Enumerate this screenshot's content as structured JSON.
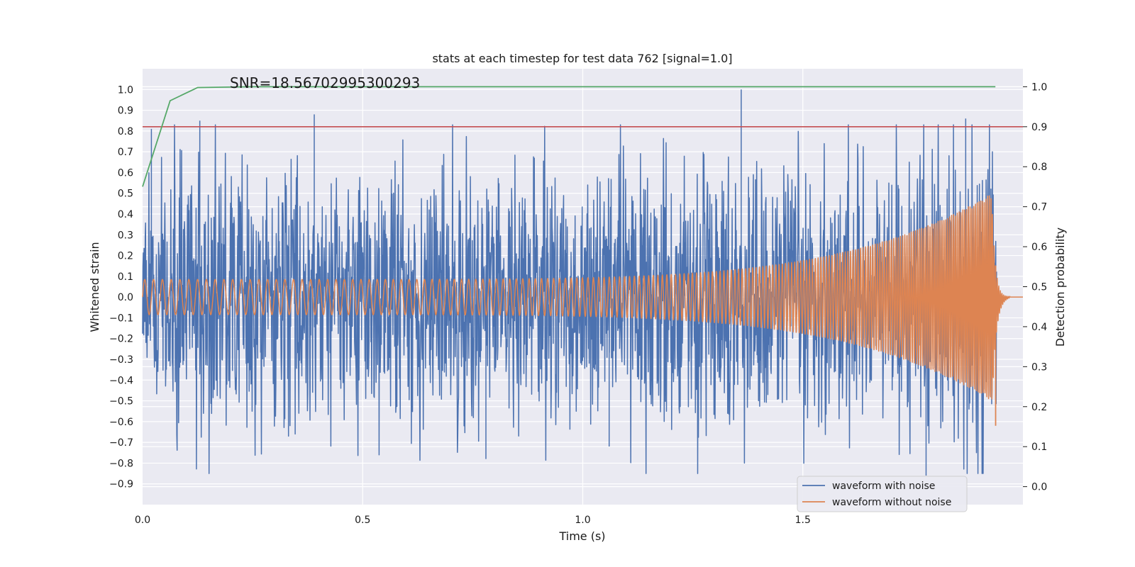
{
  "chart_data": {
    "type": "line",
    "title": "stats at each timestep for test data 762 [signal=1.0]",
    "annotation": "SNR=18.56702995300293",
    "xlabel": "Time (s)",
    "ylabel": "Whitened strain",
    "y2label": "Detection probability",
    "xlim": [
      0.0,
      2.0
    ],
    "ylim": [
      -1.0,
      1.1
    ],
    "y2lim": [
      -0.045,
      1.045
    ],
    "xticks": [
      "0.0",
      "0.5",
      "1.0",
      "1.5"
    ],
    "xtick_values": [
      0.0,
      0.5,
      1.0,
      1.5
    ],
    "yticks": [
      "−0.9",
      "−0.8",
      "−0.7",
      "−0.6",
      "−0.5",
      "−0.4",
      "−0.3",
      "−0.2",
      "−0.1",
      "0.0",
      "0.1",
      "0.2",
      "0.3",
      "0.4",
      "0.5",
      "0.6",
      "0.7",
      "0.8",
      "0.9",
      "1.0"
    ],
    "ytick_values": [
      -0.9,
      -0.8,
      -0.7,
      -0.6,
      -0.5,
      -0.4,
      -0.3,
      -0.2,
      -0.1,
      0.0,
      0.1,
      0.2,
      0.3,
      0.4,
      0.5,
      0.6,
      0.7,
      0.8,
      0.9,
      1.0
    ],
    "y2ticks": [
      "0.0",
      "0.1",
      "0.2",
      "0.3",
      "0.4",
      "0.5",
      "0.6",
      "0.7",
      "0.8",
      "0.9",
      "1.0"
    ],
    "y2tick_values": [
      0.0,
      0.1,
      0.2,
      0.3,
      0.4,
      0.5,
      0.6,
      0.7,
      0.8,
      0.9,
      1.0
    ],
    "legend_placement": "bottom-right",
    "series": [
      {
        "name": "waveform with noise",
        "axis": "left",
        "color": "#4c72b0",
        "description_hint": "noisy whitened strain, sampled over 0 to 1.94 s",
        "duration": 1.94,
        "noise_amplitude": 0.3,
        "notable_peaks": [
          {
            "x": 0.02,
            "y": 0.81
          },
          {
            "x": 0.13,
            "y": 0.85
          },
          {
            "x": 0.39,
            "y": 0.88
          },
          {
            "x": 0.78,
            "y": -0.78
          },
          {
            "x": 1.36,
            "y": 1.0
          },
          {
            "x": 1.78,
            "y": -0.86
          },
          {
            "x": 1.87,
            "y": 0.86
          },
          {
            "x": 1.06,
            "y": -0.72
          }
        ]
      },
      {
        "name": "waveform without noise",
        "axis": "left",
        "color": "#dd8452",
        "chirp_start_amplitude": 0.085,
        "chirp_peak_amplitude": 0.5,
        "chirp_start_freq_hz": 50,
        "chirp_end_freq_hz": 260,
        "merger_time": 1.93,
        "ringdown_end": 1.97,
        "tail_until": 2.0,
        "min_value": -0.62
      },
      {
        "name": "detection probability",
        "axis": "right",
        "color": "#55a868",
        "x": [
          0.0,
          0.0625,
          0.125,
          0.25,
          0.5,
          1.0,
          1.5,
          1.9375
        ],
        "values": [
          0.75,
          0.965,
          0.998,
          1.0,
          1.0,
          1.0,
          1.0,
          1.0
        ]
      },
      {
        "name": "threshold",
        "axis": "right",
        "color": "#c44e52",
        "x": [
          0.0,
          2.0
        ],
        "values": [
          0.9,
          0.9
        ]
      }
    ],
    "legend": [
      {
        "label": "waveform with noise",
        "color": "#4c72b0"
      },
      {
        "label": "waveform without noise",
        "color": "#dd8452"
      }
    ]
  }
}
